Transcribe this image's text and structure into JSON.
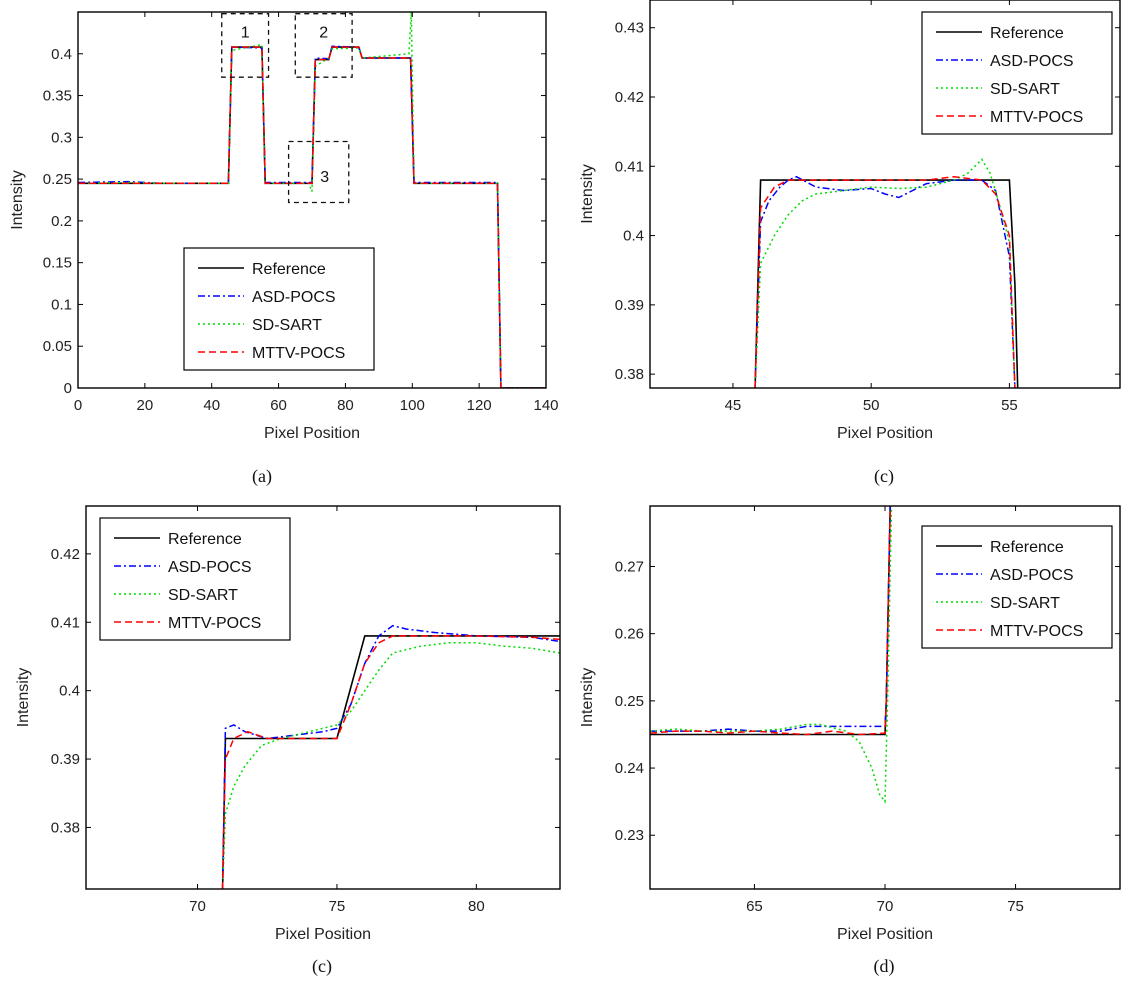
{
  "legend_entries": [
    {
      "name": "Reference",
      "color": "#000000",
      "dash": "solid"
    },
    {
      "name": "ASD-POCS",
      "color": "#0000ff",
      "dash": "dashdot"
    },
    {
      "name": "SD-SART",
      "color": "#00dd00",
      "dash": "dotted"
    },
    {
      "name": "MTTV-POCS",
      "color": "#ff0000",
      "dash": "dashed"
    }
  ],
  "chart_data": [
    {
      "type": "line",
      "caption": "(a)",
      "xlabel": "Pixel Position",
      "ylabel": "Intensity",
      "xlim": [
        0,
        140
      ],
      "ylim": [
        0,
        0.45
      ],
      "xticks": [
        0,
        20,
        40,
        60,
        80,
        100,
        120,
        140
      ],
      "xtick_labels": [
        "0",
        "20",
        "40",
        "60",
        "80",
        "100",
        "120",
        "140"
      ],
      "yticks": [
        0,
        0.05,
        0.1,
        0.15,
        0.2,
        0.25,
        0.3,
        0.35,
        0.4
      ],
      "ytick_labels": [
        "0",
        "0.05",
        "0.1",
        "0.15",
        "0.2",
        "0.25",
        "0.3",
        "0.35",
        "0.4"
      ],
      "legend_position": "bottom-center",
      "annotations": [
        {
          "label": "1",
          "x_range": [
            43,
            57
          ],
          "y_range": [
            0.372,
            0.448
          ]
        },
        {
          "label": "2",
          "x_range": [
            65,
            82
          ],
          "y_range": [
            0.372,
            0.448
          ]
        },
        {
          "label": "3",
          "x_range": [
            63,
            81
          ],
          "y_range": [
            0.222,
            0.295
          ]
        }
      ],
      "series": [
        {
          "name": "Reference",
          "x": [
            0,
            45,
            46,
            55,
            56,
            70,
            71,
            75,
            76,
            84,
            85,
            99.5,
            100.5,
            125.5,
            126.5,
            140
          ],
          "y": [
            0.245,
            0.245,
            0.408,
            0.408,
            0.245,
            0.245,
            0.393,
            0.393,
            0.408,
            0.408,
            0.395,
            0.395,
            0.245,
            0.245,
            0,
            0
          ]
        },
        {
          "name": "ASD-POCS",
          "x": [
            0,
            15,
            25,
            45,
            46,
            55,
            56,
            70,
            71,
            75,
            76,
            84,
            85,
            99.5,
            100.5,
            125.5,
            126.5,
            140
          ],
          "y": [
            0.246,
            0.247,
            0.245,
            0.245,
            0.408,
            0.407,
            0.246,
            0.246,
            0.395,
            0.394,
            0.409,
            0.408,
            0.395,
            0.395,
            0.246,
            0.246,
            0,
            0
          ]
        },
        {
          "name": "SD-SART",
          "x": [
            0,
            15,
            25,
            45,
            46,
            55,
            56,
            69,
            70,
            71,
            75,
            76,
            84,
            85,
            99,
            99.7,
            100.5,
            125.5,
            126.5,
            140
          ],
          "y": [
            0.245,
            0.246,
            0.245,
            0.245,
            0.404,
            0.411,
            0.245,
            0.245,
            0.235,
            0.385,
            0.395,
            0.406,
            0.407,
            0.395,
            0.4,
            0.45,
            0.245,
            0.245,
            0,
            0
          ]
        },
        {
          "name": "MTTV-POCS",
          "x": [
            0,
            45,
            46,
            55,
            56,
            70,
            71,
            75,
            76,
            84,
            85,
            99.5,
            100.5,
            125.5,
            126.5,
            140
          ],
          "y": [
            0.245,
            0.245,
            0.408,
            0.408,
            0.245,
            0.245,
            0.393,
            0.393,
            0.408,
            0.408,
            0.395,
            0.395,
            0.245,
            0.245,
            0,
            0
          ]
        }
      ]
    },
    {
      "type": "line",
      "caption": "(c)",
      "xlabel": "Pixel Position",
      "ylabel": "Intensity",
      "xlim": [
        42,
        59
      ],
      "ylim": [
        0.378,
        0.434
      ],
      "xticks": [
        45,
        50,
        55
      ],
      "xtick_labels": [
        "45",
        "50",
        "55"
      ],
      "yticks": [
        0.38,
        0.39,
        0.4,
        0.41,
        0.42,
        0.43
      ],
      "ytick_labels": [
        "0.38",
        "0.39",
        "0.4",
        "0.41",
        "0.42",
        "0.43"
      ],
      "legend_position": "top-right",
      "annotations": [],
      "series": [
        {
          "name": "Reference",
          "x": [
            45.8,
            46.0,
            55.0,
            55.2,
            55.3
          ],
          "y": [
            0.378,
            0.408,
            0.408,
            0.393,
            0.378
          ]
        },
        {
          "name": "ASD-POCS",
          "x": [
            45.8,
            46.0,
            46.3,
            46.7,
            47.0,
            47.3,
            48,
            49,
            50,
            50.5,
            51,
            51.5,
            52,
            53,
            54,
            54.5,
            55,
            55.2
          ],
          "y": [
            0.378,
            0.402,
            0.405,
            0.407,
            0.408,
            0.4085,
            0.407,
            0.4065,
            0.4068,
            0.406,
            0.4055,
            0.4065,
            0.4075,
            0.408,
            0.408,
            0.4065,
            0.397,
            0.378
          ]
        },
        {
          "name": "SD-SART",
          "x": [
            45.8,
            46.0,
            46.5,
            47,
            47.5,
            48,
            49,
            50,
            51,
            52,
            53,
            53.5,
            54,
            54.3,
            54.6,
            55,
            55.2
          ],
          "y": [
            0.378,
            0.396,
            0.4,
            0.403,
            0.405,
            0.406,
            0.4065,
            0.407,
            0.4068,
            0.407,
            0.408,
            0.409,
            0.411,
            0.409,
            0.405,
            0.399,
            0.378
          ]
        },
        {
          "name": "MTTV-POCS",
          "x": [
            45.8,
            46.0,
            46.5,
            47,
            48,
            50,
            52,
            53,
            54,
            54.5,
            55,
            55.2
          ],
          "y": [
            0.378,
            0.404,
            0.407,
            0.408,
            0.408,
            0.408,
            0.408,
            0.4085,
            0.408,
            0.406,
            0.4,
            0.378
          ]
        }
      ]
    },
    {
      "type": "line",
      "caption": "(c)",
      "xlabel": "Pixel Position",
      "ylabel": "Intensity",
      "xlim": [
        66,
        83
      ],
      "ylim": [
        0.371,
        0.427
      ],
      "xticks": [
        70,
        75,
        80
      ],
      "xtick_labels": [
        "70",
        "75",
        "80"
      ],
      "yticks": [
        0.38,
        0.39,
        0.4,
        0.41,
        0.42
      ],
      "ytick_labels": [
        "0.38",
        "0.39",
        "0.4",
        "0.41",
        "0.42"
      ],
      "legend_position": "top-left",
      "annotations": [],
      "series": [
        {
          "name": "Reference",
          "x": [
            70.9,
            71.0,
            75.0,
            76.0,
            83
          ],
          "y": [
            0.371,
            0.393,
            0.393,
            0.408,
            0.408
          ]
        },
        {
          "name": "ASD-POCS",
          "x": [
            70.9,
            71.0,
            71.3,
            71.7,
            72.5,
            73.5,
            74.5,
            75.0,
            75.5,
            76.0,
            76.5,
            77.0,
            77.5,
            78.5,
            80,
            82,
            83
          ],
          "y": [
            0.371,
            0.3945,
            0.395,
            0.394,
            0.393,
            0.3935,
            0.394,
            0.3945,
            0.398,
            0.404,
            0.408,
            0.4095,
            0.409,
            0.4085,
            0.408,
            0.4078,
            0.4072
          ]
        },
        {
          "name": "SD-SART",
          "x": [
            70.9,
            71.0,
            71.3,
            71.7,
            72.3,
            73,
            74,
            75,
            75.5,
            76,
            76.5,
            77,
            78,
            79,
            80,
            81,
            82,
            83
          ],
          "y": [
            0.371,
            0.382,
            0.386,
            0.389,
            0.392,
            0.393,
            0.394,
            0.395,
            0.397,
            0.4,
            0.403,
            0.4055,
            0.4065,
            0.407,
            0.407,
            0.4065,
            0.4062,
            0.4055
          ]
        },
        {
          "name": "MTTV-POCS",
          "x": [
            70.9,
            71.0,
            71.3,
            71.8,
            72.5,
            73.5,
            75.0,
            75.5,
            76.0,
            76.5,
            77,
            78,
            80,
            82,
            83
          ],
          "y": [
            0.371,
            0.39,
            0.393,
            0.394,
            0.393,
            0.393,
            0.393,
            0.398,
            0.404,
            0.407,
            0.408,
            0.408,
            0.408,
            0.4078,
            0.4075
          ]
        }
      ]
    },
    {
      "type": "line",
      "caption": "(d)",
      "xlabel": "Pixel Position",
      "ylabel": "Intensity",
      "xlim": [
        61,
        79
      ],
      "ylim": [
        0.222,
        0.279
      ],
      "xticks": [
        65,
        70,
        75
      ],
      "xtick_labels": [
        "65",
        "70",
        "75"
      ],
      "yticks": [
        0.23,
        0.24,
        0.25,
        0.26,
        0.27
      ],
      "ytick_labels": [
        "0.23",
        "0.24",
        "0.25",
        "0.26",
        "0.27"
      ],
      "legend_position": "top-right",
      "annotations": [],
      "series": [
        {
          "name": "Reference",
          "x": [
            61,
            70.0,
            70.05,
            70.2
          ],
          "y": [
            0.245,
            0.245,
            0.25,
            0.279
          ]
        },
        {
          "name": "ASD-POCS",
          "x": [
            61,
            62,
            63,
            64,
            65,
            66,
            67,
            68,
            69,
            70.0,
            70.05,
            70.2
          ],
          "y": [
            0.2455,
            0.2455,
            0.2455,
            0.2458,
            0.2455,
            0.2455,
            0.2462,
            0.2462,
            0.2462,
            0.2462,
            0.25,
            0.279
          ]
        },
        {
          "name": "SD-SART",
          "x": [
            61,
            62,
            63,
            64,
            65,
            66,
            67,
            67.5,
            68,
            68.5,
            69,
            69.5,
            69.8,
            70.0,
            70.1,
            70.25
          ],
          "y": [
            0.2455,
            0.2458,
            0.2455,
            0.2455,
            0.2455,
            0.2458,
            0.2465,
            0.2465,
            0.246,
            0.2455,
            0.244,
            0.24,
            0.236,
            0.235,
            0.25,
            0.279
          ]
        },
        {
          "name": "MTTV-POCS",
          "x": [
            61,
            62,
            63,
            64,
            65,
            66,
            67,
            68,
            69,
            70.0,
            70.05,
            70.2
          ],
          "y": [
            0.2452,
            0.2455,
            0.2455,
            0.2452,
            0.2455,
            0.2452,
            0.245,
            0.2455,
            0.245,
            0.2452,
            0.25,
            0.279
          ]
        }
      ]
    }
  ]
}
